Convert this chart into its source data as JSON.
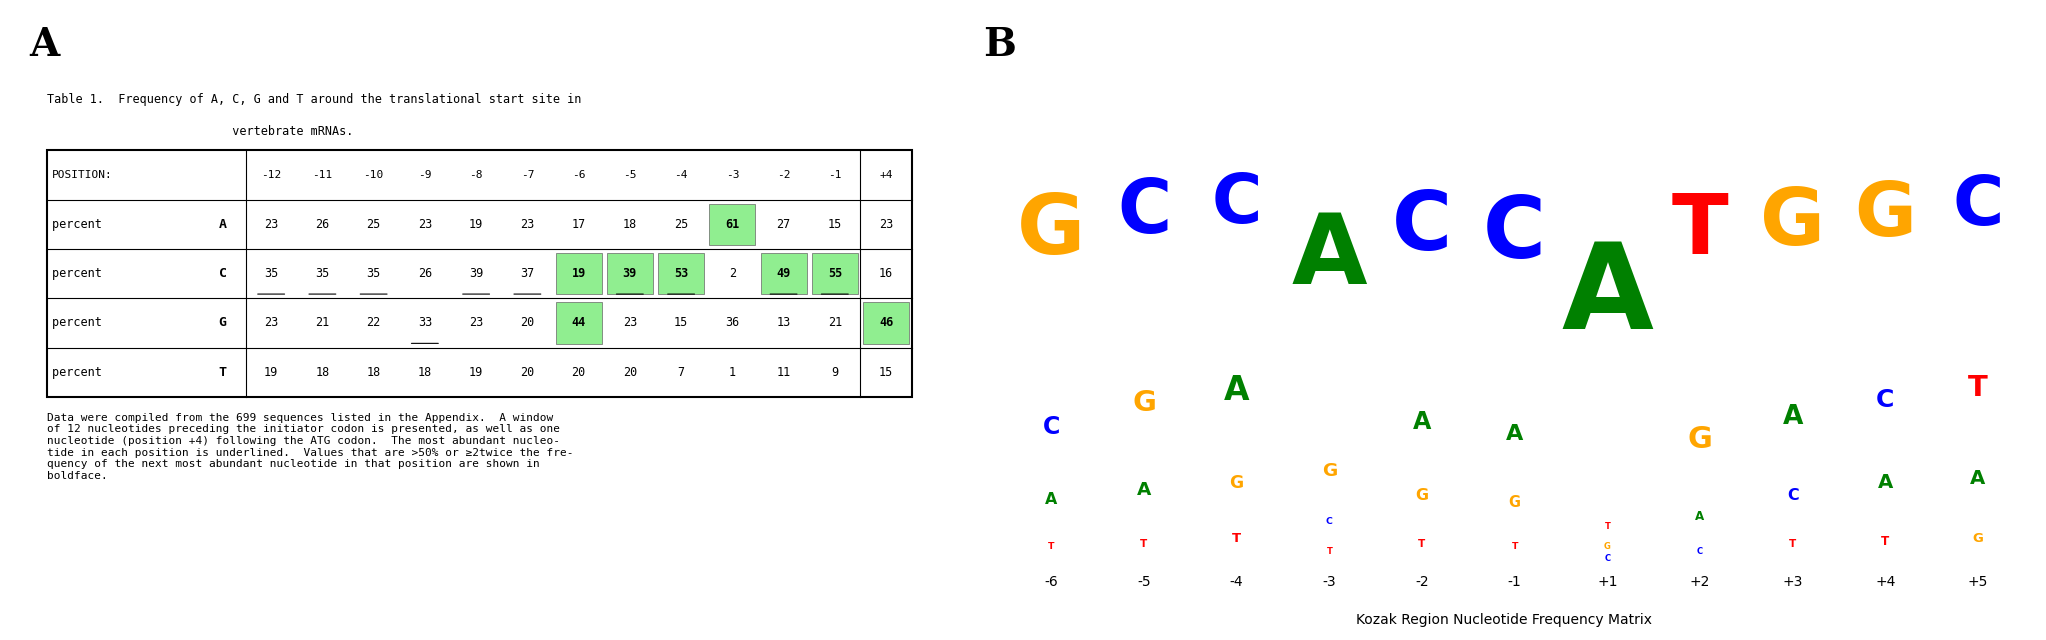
{
  "positions": [
    "-12",
    "-11",
    "-10",
    "-9",
    "-8",
    "-7",
    "-6",
    "-5",
    "-4",
    "-3",
    "-2",
    "-1",
    "+4"
  ],
  "percent_A": [
    23,
    26,
    25,
    23,
    19,
    23,
    17,
    18,
    25,
    61,
    27,
    15,
    23
  ],
  "percent_C": [
    35,
    35,
    35,
    26,
    39,
    37,
    19,
    39,
    53,
    2,
    49,
    55,
    16
  ],
  "percent_G": [
    23,
    21,
    22,
    33,
    23,
    20,
    44,
    23,
    15,
    36,
    13,
    21,
    46
  ],
  "percent_T": [
    19,
    18,
    18,
    18,
    19,
    20,
    20,
    20,
    7,
    1,
    11,
    9,
    15
  ],
  "underlined_A": [
    false,
    false,
    false,
    false,
    false,
    false,
    false,
    false,
    false,
    false,
    false,
    false,
    false
  ],
  "underlined_C": [
    true,
    true,
    true,
    false,
    true,
    true,
    false,
    true,
    true,
    false,
    true,
    true,
    false
  ],
  "underlined_G": [
    false,
    false,
    false,
    true,
    false,
    false,
    false,
    false,
    false,
    false,
    false,
    false,
    false
  ],
  "underlined_T": [
    false,
    false,
    false,
    false,
    false,
    false,
    false,
    false,
    false,
    false,
    false,
    false,
    false
  ],
  "highlighted_A": [
    9
  ],
  "highlighted_C": [
    6,
    7,
    8,
    10,
    11
  ],
  "highlighted_G": [
    6,
    12
  ],
  "highlighted_T": [],
  "highlight_color": "#90EE90",
  "caption": "Data were compiled from the 699 sequences listed in the Appendix.  A window\nof 12 nucleotides preceding the initiator codon is presented, as well as one\nnucleotide (position +4) following the ATG codon.  The most abundant nucleo-\ntide in each position is underlined.  Values that are >50% or ≥2twice the fre-\nquency of the next most abundant nucleotide in that position are shown in\nboldface.",
  "logo_xlabel": "Kozak Region Nucleotide Frequency Matrix",
  "nucleotide_colors": {
    "A": "#008000",
    "C": "#0000FF",
    "G": "#FFA500",
    "T": "#FF0000"
  },
  "logo_stacks": {
    "-6": [
      [
        "T",
        0.07,
        "T"
      ],
      [
        "A",
        0.12,
        "A"
      ],
      [
        "C",
        0.18,
        "C"
      ],
      [
        "G",
        0.63,
        "G"
      ]
    ],
    "-5": [
      [
        "T",
        0.08,
        "T"
      ],
      [
        "A",
        0.14,
        "A"
      ],
      [
        "G",
        0.22,
        "G"
      ],
      [
        "C",
        0.56,
        "C"
      ]
    ],
    "-4": [
      [
        "T",
        0.1,
        "T"
      ],
      [
        "G",
        0.13,
        "G"
      ],
      [
        "A",
        0.25,
        "A"
      ],
      [
        "C",
        0.52,
        "C"
      ]
    ],
    "-3": [
      [
        "T",
        0.05,
        "T"
      ],
      [
        "C",
        0.07,
        "C"
      ],
      [
        "G",
        0.14,
        "G"
      ],
      [
        "A",
        0.74,
        "A"
      ]
    ],
    "-2": [
      [
        "T",
        0.08,
        "T"
      ],
      [
        "G",
        0.12,
        "G"
      ],
      [
        "A",
        0.18,
        "A"
      ],
      [
        "C",
        0.62,
        "C"
      ]
    ],
    "-1": [
      [
        "T",
        0.07,
        "T"
      ],
      [
        "G",
        0.11,
        "G"
      ],
      [
        "A",
        0.17,
        "A"
      ],
      [
        "C",
        0.65,
        "C"
      ]
    ],
    "+1": [
      [
        "C",
        0.02,
        "C"
      ],
      [
        "G",
        0.03,
        "G"
      ],
      [
        "T",
        0.05,
        "T"
      ],
      [
        "A",
        0.9,
        "A"
      ]
    ],
    "+2": [
      [
        "C",
        0.05,
        "C"
      ],
      [
        "A",
        0.09,
        "A"
      ],
      [
        "G",
        0.23,
        "G"
      ],
      [
        "T",
        0.63,
        "T"
      ]
    ],
    "+3": [
      [
        "T",
        0.08,
        "T"
      ],
      [
        "C",
        0.12,
        "C"
      ],
      [
        "A",
        0.2,
        "A"
      ],
      [
        "G",
        0.6,
        "G"
      ]
    ],
    "+4": [
      [
        "T",
        0.09,
        "T"
      ],
      [
        "A",
        0.15,
        "A"
      ],
      [
        "C",
        0.19,
        "C"
      ],
      [
        "G",
        0.57,
        "G"
      ]
    ],
    "+5": [
      [
        "G",
        0.1,
        "G"
      ],
      [
        "A",
        0.15,
        "A"
      ],
      [
        "T",
        0.22,
        "T"
      ],
      [
        "C",
        0.53,
        "C"
      ]
    ]
  }
}
